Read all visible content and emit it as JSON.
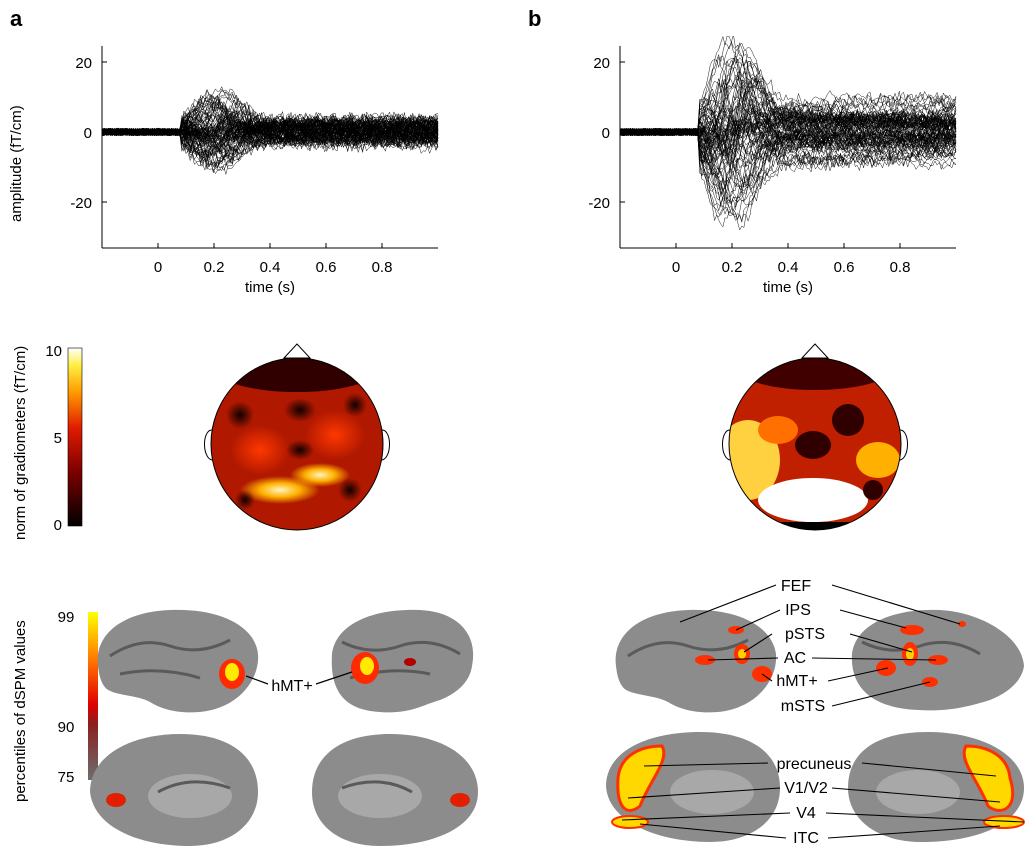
{
  "panels": [
    {
      "letter": "a"
    },
    {
      "letter": "b"
    }
  ],
  "waveforms": {
    "ylabel": "amplitude (fT/cm)",
    "xlabel": "time (s)",
    "yticks": [
      "20",
      "0",
      "-20"
    ],
    "xticks": [
      "0",
      "0.2",
      "0.4",
      "0.6",
      "0.8"
    ]
  },
  "colorbar1": {
    "label": "norm  of gradiometers (fT/cm)",
    "ticks": [
      "10",
      "5",
      "0"
    ]
  },
  "colorbar2": {
    "label": "percentiles  of dSPM  values",
    "ticks": [
      "99",
      "90",
      "75"
    ]
  },
  "brain_labels_a": {
    "hmt": "hMT+"
  },
  "brain_labels_b": {
    "fef": "FEF",
    "ips": "IPS",
    "psts": "pSTS",
    "ac": "AC",
    "hmt": "hMT+",
    "msts": "mSTS",
    "precuneus": "precuneus",
    "v1v2": "V1/V2",
    "v4": "V4",
    "itc": "ITC"
  },
  "chart_data": [
    {
      "type": "line",
      "panel": "a",
      "xlabel": "time (s)",
      "ylabel": "amplitude (fT/cm)",
      "xlim": [
        -0.2,
        1.0
      ],
      "ylim": [
        -33,
        25
      ],
      "series_count": 150,
      "peak_abs_amplitude": 12
    },
    {
      "type": "line",
      "panel": "b",
      "xlabel": "time (s)",
      "ylabel": "amplitude (fT/cm)",
      "xlim": [
        -0.2,
        1.0
      ],
      "ylim": [
        -33,
        25
      ],
      "series_count": 150,
      "peak_abs_amplitude": 30
    }
  ]
}
